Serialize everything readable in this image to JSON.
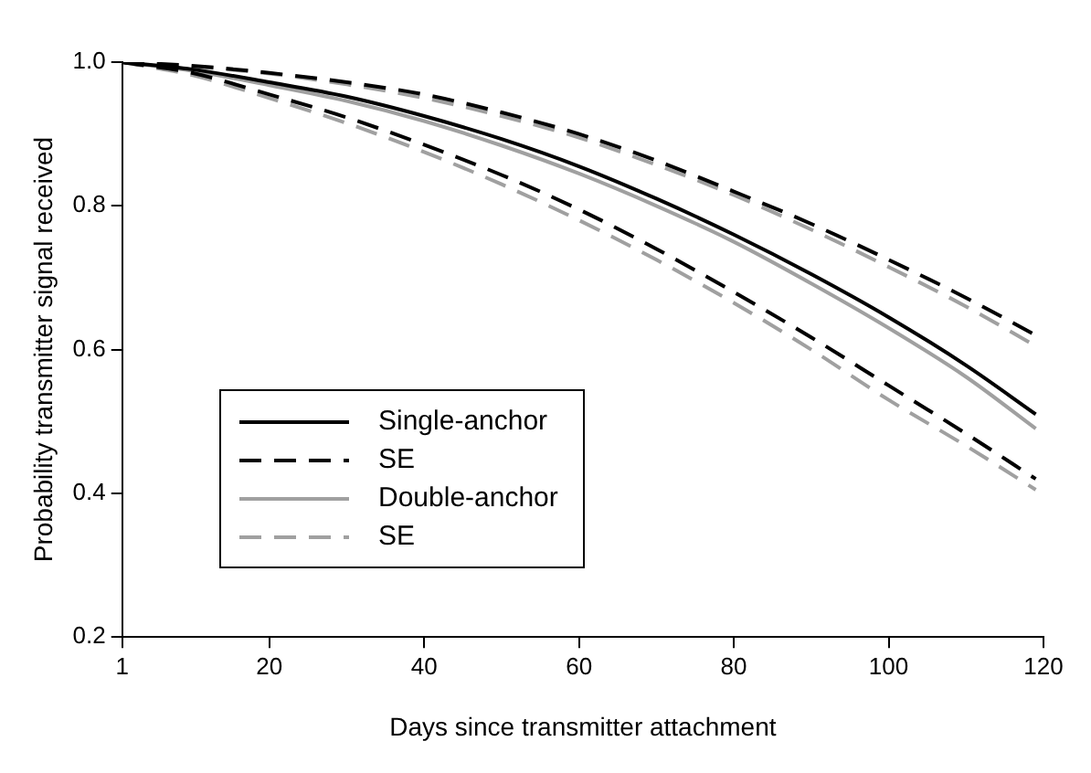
{
  "chart_data": {
    "type": "line",
    "xlabel": "Days since transmitter attachment",
    "ylabel": "Probability transmitter signal received",
    "x": [
      1,
      10,
      20,
      30,
      40,
      50,
      60,
      70,
      80,
      90,
      100,
      110,
      119
    ],
    "xlim": [
      1,
      120
    ],
    "xticks": [
      1,
      20,
      40,
      60,
      80,
      100,
      120
    ],
    "ylim": [
      0.2,
      1.0
    ],
    "yticks": [
      0.2,
      0.4,
      0.6,
      0.8,
      {
        "value": 1,
        "label": "1.0"
      }
    ],
    "grid": false,
    "legend": "left",
    "marker": "none",
    "series": [
      {
        "name": "Single-anchor",
        "color": "#000000",
        "line_style": "solid",
        "values": [
          1.0,
          0.99,
          0.972,
          0.952,
          0.925,
          0.893,
          0.855,
          0.81,
          0.76,
          0.705,
          0.645,
          0.578,
          0.51
        ]
      },
      {
        "name": "SE",
        "color": "#000000",
        "line_style": "dashed",
        "values": [
          1.0,
          0.995,
          0.985,
          0.972,
          0.955,
          0.93,
          0.9,
          0.863,
          0.82,
          0.775,
          0.725,
          0.672,
          0.62
        ]
      },
      {
        "color": "#000000",
        "line_style": "dashed",
        "values": [
          1.0,
          0.985,
          0.955,
          0.923,
          0.885,
          0.843,
          0.795,
          0.74,
          0.68,
          0.617,
          0.55,
          0.483,
          0.42
        ]
      },
      {
        "name": "Double-anchor",
        "color": "#a0a0a0",
        "line_style": "solid",
        "values": [
          1.0,
          0.988,
          0.968,
          0.946,
          0.918,
          0.884,
          0.845,
          0.8,
          0.75,
          0.692,
          0.63,
          0.562,
          0.49
        ]
      },
      {
        "name": "SE",
        "color": "#a0a0a0",
        "line_style": "dashed",
        "values": [
          1.0,
          0.994,
          0.984,
          0.969,
          0.95,
          0.925,
          0.895,
          0.857,
          0.815,
          0.767,
          0.715,
          0.66,
          0.605
        ]
      },
      {
        "color": "#a0a0a0",
        "line_style": "dashed",
        "values": [
          1.0,
          0.982,
          0.95,
          0.915,
          0.875,
          0.83,
          0.78,
          0.725,
          0.665,
          0.6,
          0.53,
          0.466,
          0.405
        ]
      }
    ]
  }
}
